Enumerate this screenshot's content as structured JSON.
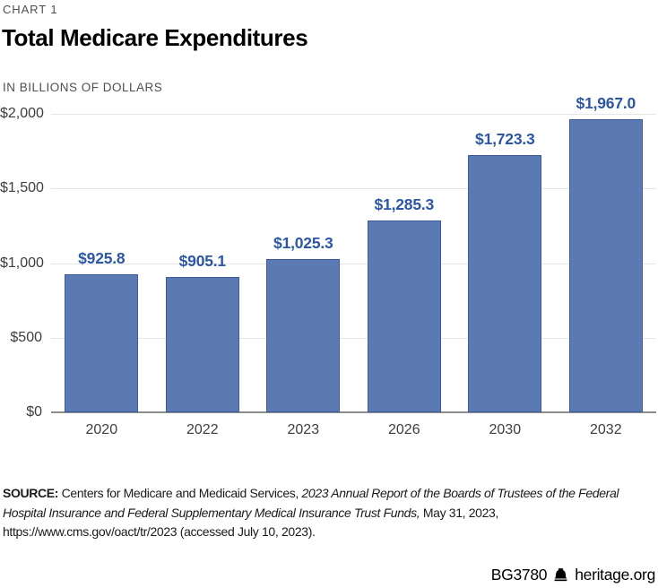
{
  "header": {
    "kicker": "CHART 1",
    "title": "Total Medicare Expenditures",
    "units": "IN BILLIONS OF DOLLARS"
  },
  "chart_data": {
    "type": "bar",
    "title": "Total Medicare Expenditures",
    "subtitle": "IN BILLIONS OF DOLLARS",
    "xlabel": "",
    "ylabel": "",
    "categories": [
      "2020",
      "2022",
      "2023",
      "2026",
      "2030",
      "2032"
    ],
    "values": [
      925.8,
      905.1,
      1025.3,
      1285.3,
      1723.3,
      1967.0
    ],
    "value_labels": [
      "$925.8",
      "$905.1",
      "$1,025.3",
      "$1,285.3",
      "$1,723.3",
      "$1,967.0"
    ],
    "ylim": [
      0,
      2000
    ],
    "yticks": [
      0,
      500,
      1000,
      1500,
      2000
    ],
    "ytick_labels": [
      "$0",
      "$500",
      "$1,000",
      "$1,500",
      "$2,000"
    ],
    "grid": true,
    "legend": "none",
    "bar_color": "#5b79b2",
    "bar_border_color": "#3d5c9d",
    "value_label_color": "#2d57a5"
  },
  "source": {
    "lines": [
      [
        {
          "text": "SOURCE:",
          "style": "bold"
        },
        {
          "text": " Centers for Medicare and Medicaid Services, ",
          "style": "normal"
        },
        {
          "text": "2023 Annual Report of the Boards of Trustees of the Federal",
          "style": "italic"
        }
      ],
      [
        {
          "text": "Hospital Insurance and Federal Supplementary Medical Insurance Trust Funds,",
          "style": "italic"
        },
        {
          "text": " May 31, 2023,",
          "style": "normal"
        }
      ],
      [
        {
          "text": "https://www.cms.gov/oact/tr/2023 (accessed July 10, 2023).",
          "style": "normal"
        }
      ]
    ]
  },
  "footer": {
    "doc_id": "BG3780",
    "icon": "liberty-bell-icon",
    "site": "heritage.org"
  }
}
